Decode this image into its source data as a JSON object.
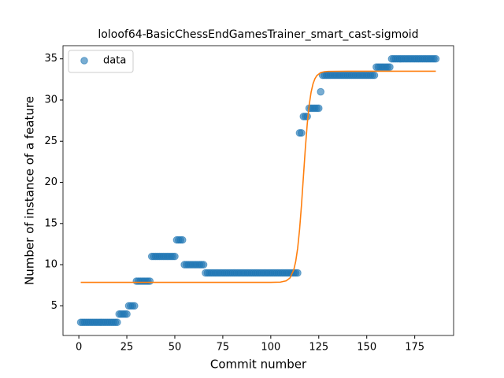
{
  "chart_data": {
    "type": "scatter",
    "title": "loloof64-BasicChessEndGamesTrainer_smart_cast-sigmoid",
    "xlabel": "Commit number",
    "ylabel": "Number of instance of a feature",
    "xlim": [
      -8.25,
      195.25
    ],
    "ylim": [
      1.4,
      36.6
    ],
    "xticks": [
      0,
      25,
      50,
      75,
      100,
      125,
      150,
      175
    ],
    "yticks": [
      5,
      10,
      15,
      20,
      25,
      30,
      35
    ],
    "legend": "upper left",
    "series": [
      {
        "name": "data",
        "type": "scatter",
        "color": "#1f77b4",
        "x": [
          1,
          2,
          3,
          4,
          5,
          6,
          7,
          8,
          9,
          10,
          11,
          12,
          13,
          14,
          15,
          16,
          17,
          18,
          19,
          20,
          21,
          22,
          23,
          24,
          25,
          26,
          27,
          28,
          29,
          30,
          31,
          32,
          33,
          34,
          35,
          36,
          37,
          38,
          39,
          40,
          41,
          42,
          43,
          44,
          45,
          46,
          47,
          48,
          49,
          50,
          51,
          52,
          53,
          54,
          55,
          56,
          57,
          58,
          59,
          60,
          61,
          62,
          63,
          64,
          65,
          66,
          67,
          68,
          69,
          70,
          71,
          72,
          73,
          74,
          75,
          76,
          77,
          78,
          79,
          80,
          81,
          82,
          83,
          84,
          85,
          86,
          87,
          88,
          89,
          90,
          91,
          92,
          93,
          94,
          95,
          96,
          97,
          98,
          99,
          100,
          101,
          102,
          103,
          104,
          105,
          106,
          107,
          108,
          109,
          110,
          111,
          112,
          113,
          114,
          115,
          116,
          117,
          118,
          119,
          120,
          121,
          122,
          123,
          124,
          125,
          126,
          127,
          128,
          129,
          130,
          131,
          132,
          133,
          134,
          135,
          136,
          137,
          138,
          139,
          140,
          141,
          142,
          143,
          144,
          145,
          146,
          147,
          148,
          149,
          150,
          151,
          152,
          153,
          154,
          155,
          156,
          157,
          158,
          159,
          160,
          161,
          162,
          163,
          164,
          165,
          166,
          167,
          168,
          169,
          170,
          171,
          172,
          173,
          174,
          175,
          176,
          177,
          178,
          179,
          180,
          181,
          182,
          183,
          184,
          185,
          186
        ],
        "values": [
          3,
          3,
          3,
          3,
          3,
          3,
          3,
          3,
          3,
          3,
          3,
          3,
          3,
          3,
          3,
          3,
          3,
          3,
          3,
          3,
          4,
          4,
          4,
          4,
          4,
          5,
          5,
          5,
          5,
          8,
          8,
          8,
          8,
          8,
          8,
          8,
          8,
          11,
          11,
          11,
          11,
          11,
          11,
          11,
          11,
          11,
          11,
          11,
          11,
          11,
          13,
          13,
          13,
          13,
          10,
          10,
          10,
          10,
          10,
          10,
          10,
          10,
          10,
          10,
          10,
          9,
          9,
          9,
          9,
          9,
          9,
          9,
          9,
          9,
          9,
          9,
          9,
          9,
          9,
          9,
          9,
          9,
          9,
          9,
          9,
          9,
          9,
          9,
          9,
          9,
          9,
          9,
          9,
          9,
          9,
          9,
          9,
          9,
          9,
          9,
          9,
          9,
          9,
          9,
          9,
          9,
          9,
          9,
          9,
          9,
          9,
          9,
          9,
          9,
          26,
          26,
          28,
          28,
          28,
          29,
          29,
          29,
          29,
          29,
          29,
          31,
          33,
          33,
          33,
          33,
          33,
          33,
          33,
          33,
          33,
          33,
          33,
          33,
          33,
          33,
          33,
          33,
          33,
          33,
          33,
          33,
          33,
          33,
          33,
          33,
          33,
          33,
          33,
          33,
          34,
          34,
          34,
          34,
          34,
          34,
          34,
          34,
          35,
          35,
          35,
          35,
          35,
          35,
          35,
          35,
          35,
          35,
          35,
          35,
          35,
          35,
          35,
          35,
          35,
          35,
          35,
          35,
          35,
          35,
          35,
          35
        ]
      },
      {
        "type": "line",
        "color": "#ff7f0e",
        "x": [
          1,
          50,
          100,
          105,
          108,
          110,
          112,
          113,
          114,
          115,
          116,
          117,
          118,
          119,
          120,
          121,
          122,
          123,
          124,
          126,
          128,
          130,
          140,
          186
        ],
        "values": [
          7.85,
          7.85,
          7.85,
          7.88,
          8.03,
          8.38,
          9.39,
          10.41,
          11.98,
          14.26,
          17.24,
          20.68,
          24.11,
          27.09,
          29.37,
          30.94,
          31.96,
          32.59,
          32.97,
          33.32,
          33.44,
          33.48,
          33.5,
          33.5
        ]
      }
    ]
  }
}
